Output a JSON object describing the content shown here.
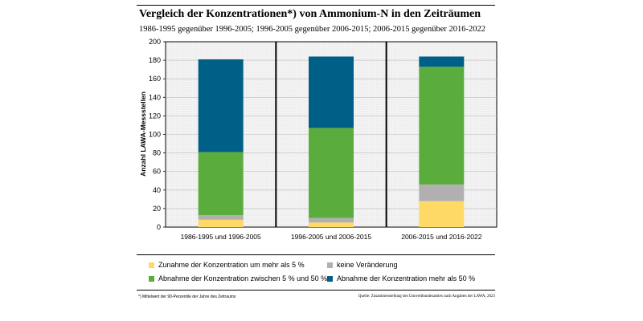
{
  "header": {
    "title": "Vergleich der Konzentrationen*) von Ammonium-N in den Zeiträumen",
    "subtitle": "1986-1995 gegenüber 1996-2005; 1996-2005 gegenüber 2006-2015; 2006-2015 gegenüber 2016-2022"
  },
  "chart_data": {
    "type": "bar",
    "stacked": true,
    "categories": [
      "1986-1995 und 1996-2005",
      "1996-2005 und 2006-2015",
      "2006-2015 und 2016-2022"
    ],
    "series": [
      {
        "name": "Zunahme der Konzentration um mehr als 5 %",
        "color": "#ffd966",
        "values": [
          8,
          5,
          28
        ]
      },
      {
        "name": "keine Veränderung",
        "color": "#b0b0b0",
        "values": [
          5,
          5,
          18
        ]
      },
      {
        "name": "Abnahme der Konzentration zwischen 5 % und 50 %",
        "color": "#5aac3c",
        "values": [
          68,
          97,
          127
        ]
      },
      {
        "name": "Abnahme der Konzentration mehr als 50 %",
        "color": "#005f87",
        "values": [
          100,
          77,
          11
        ]
      }
    ],
    "ylabel": "Anzahl LAWA-Messstellen",
    "ylim": [
      0,
      200
    ],
    "yticks": [
      0,
      20,
      40,
      60,
      80,
      100,
      120,
      140,
      160,
      180,
      200
    ],
    "legend_position": "bottom"
  },
  "footer": {
    "footnote": "*) Mittelwert der 90-Perzentile der Jahre des Zeitraums",
    "source": "Quelle: Zusammenstellung des Umweltbundesamtes nach Angaben der LAWA, 2023"
  }
}
